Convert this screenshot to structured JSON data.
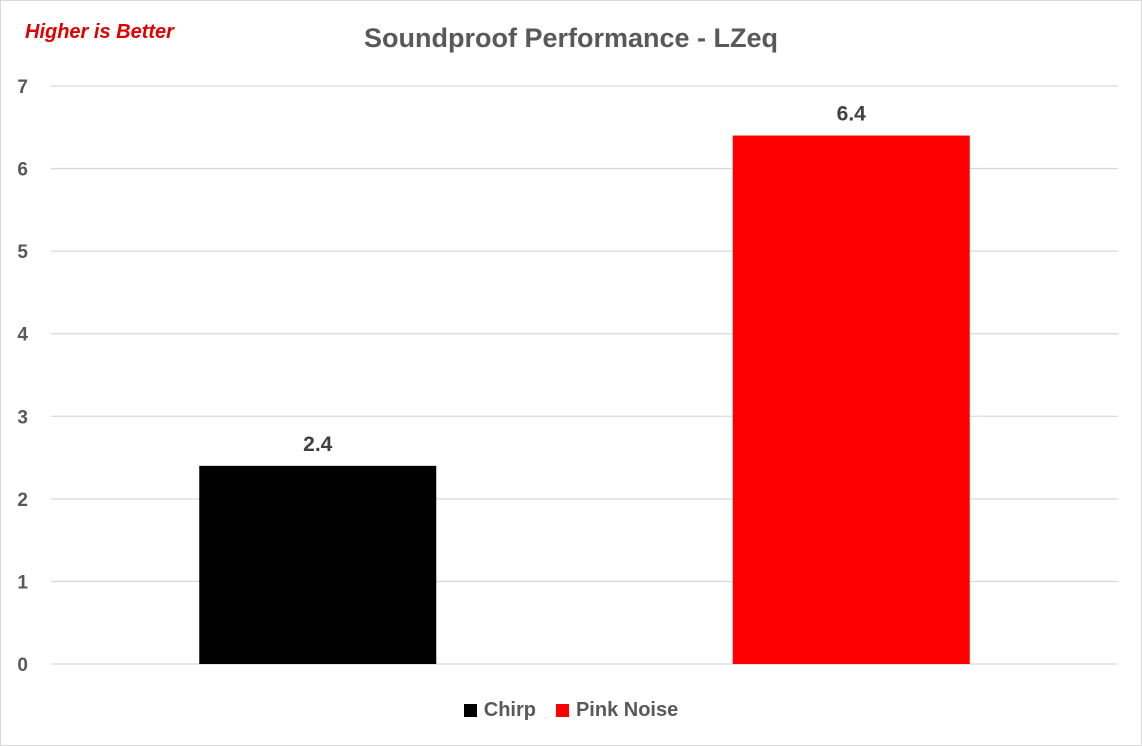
{
  "chart_data": {
    "type": "bar",
    "title": "Soundproof Performance - LZeq",
    "annotation": "Higher is Better",
    "categories": [
      "Chirp",
      "Pink Noise"
    ],
    "values": [
      2.4,
      6.4
    ],
    "data_labels": [
      "2.4",
      "6.4"
    ],
    "colors": [
      "#000000",
      "#ff0000"
    ],
    "ylim": [
      0,
      7
    ],
    "yticks": [
      "0",
      "1",
      "2",
      "3",
      "4",
      "5",
      "6",
      "7"
    ],
    "xlabel": "",
    "ylabel": "",
    "grid": true,
    "legend_position": "bottom",
    "legend": [
      {
        "label": "Chirp",
        "color": "#000000"
      },
      {
        "label": "Pink Noise",
        "color": "#ff0000"
      }
    ]
  }
}
